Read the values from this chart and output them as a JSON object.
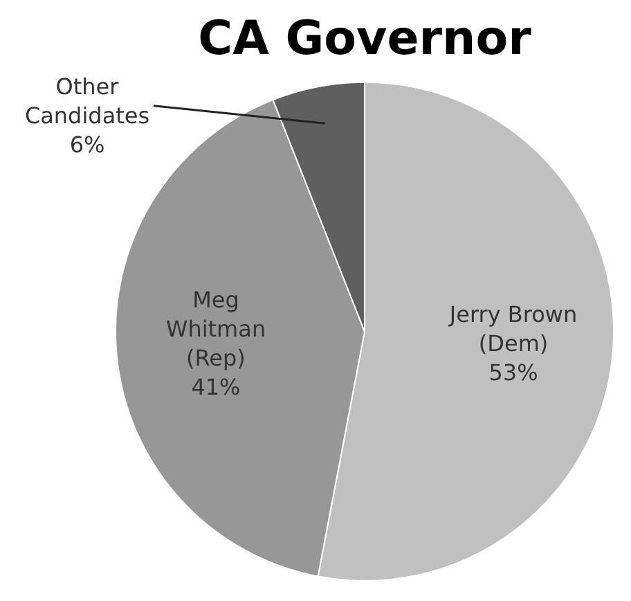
{
  "chart_data": {
    "type": "pie",
    "title": "CA Governor",
    "categories": [
      "Jerry Brown (Dem)",
      "Meg Whitman (Rep)",
      "Other Candidates"
    ],
    "values": [
      53,
      41,
      6
    ],
    "colors": [
      "#c0c0c0",
      "#979797",
      "#5f5f5f"
    ],
    "value_labels": [
      "53%",
      "41%",
      "6%"
    ],
    "legend": false
  }
}
